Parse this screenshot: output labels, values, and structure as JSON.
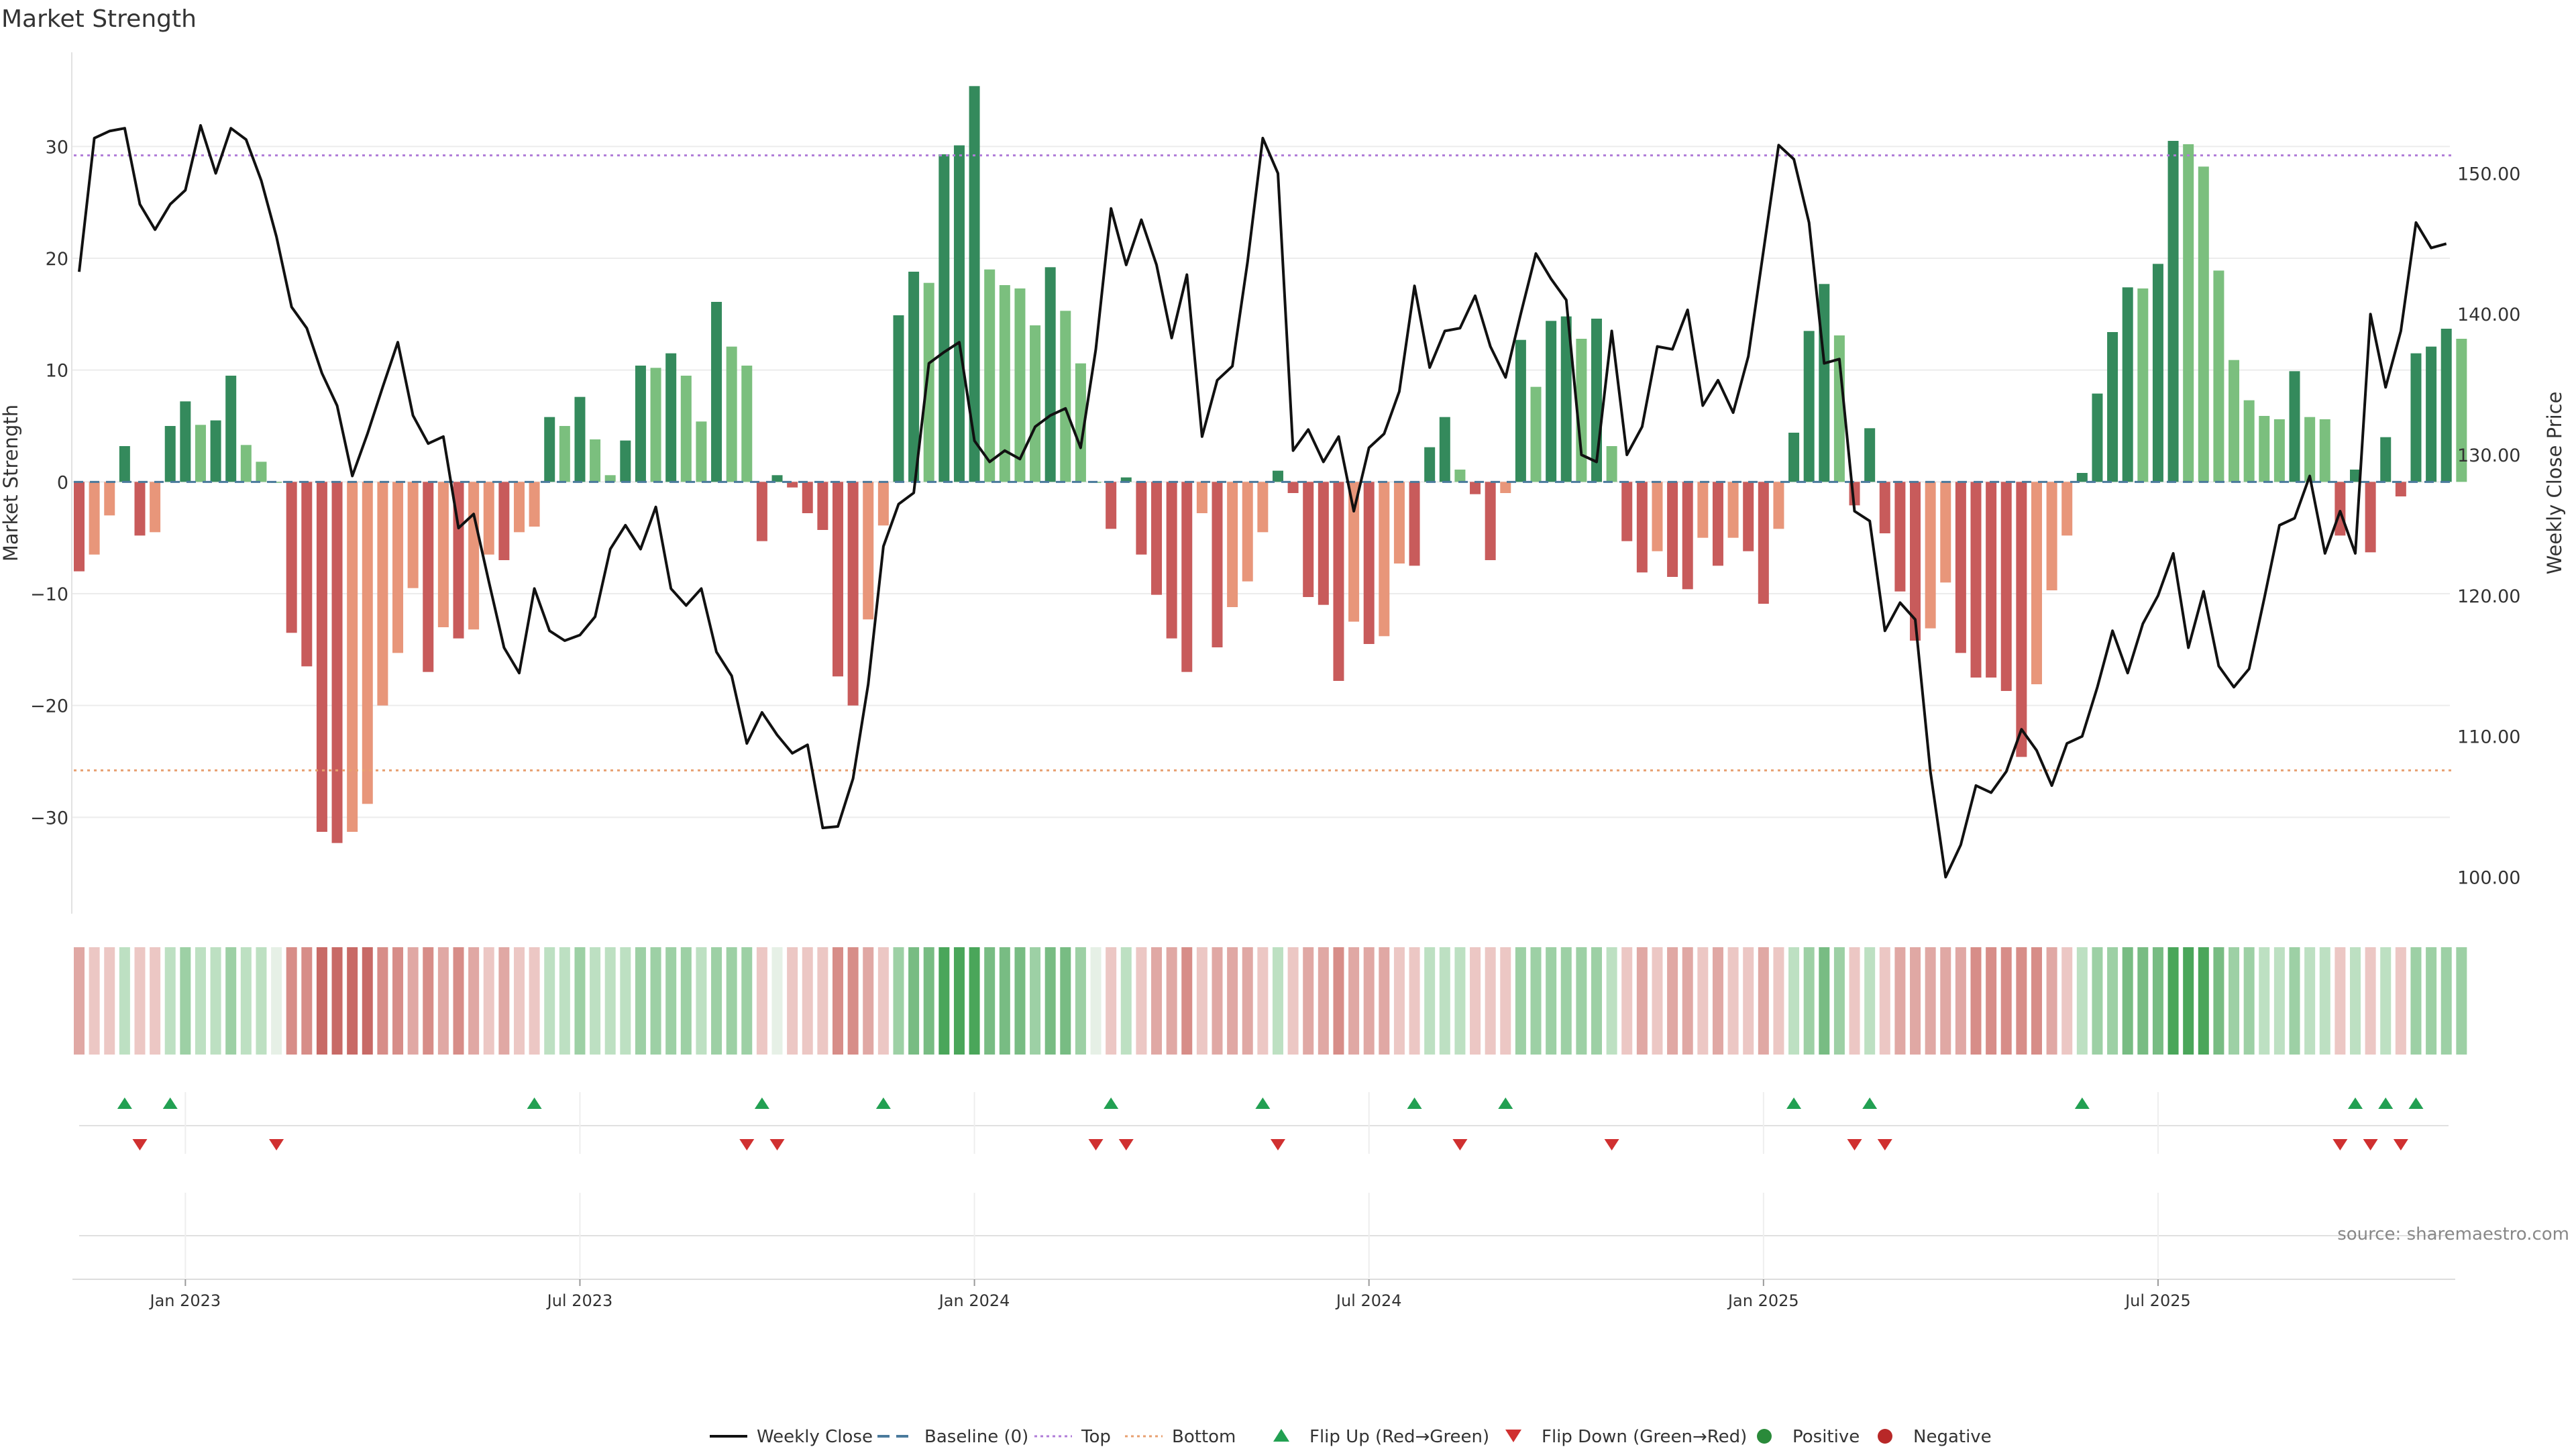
{
  "chart_data": {
    "type": "bar+line",
    "title": "Market Strength",
    "ylabel_left": "Market Strength",
    "ylabel_right": "Weekly Close Price",
    "ylim_left": [
      -38.5,
      38.3
    ],
    "ylim_right": [
      97.5,
      158.5
    ],
    "yticks_left": [
      -30,
      -20,
      -10,
      0,
      10,
      20,
      30
    ],
    "yticks_left_labels": [
      "−30",
      "−20",
      "−10",
      "0",
      "10",
      "20",
      "30"
    ],
    "yticks_right": [
      100,
      110,
      120,
      130,
      140,
      150
    ],
    "yticks_right_labels": [
      "100.00",
      "110.00",
      "120.00",
      "130.00",
      "140.00",
      "150.00"
    ],
    "x_ticks": [
      {
        "week": 7,
        "label": "Jan 2023"
      },
      {
        "week": 33,
        "label": "Jul 2023"
      },
      {
        "week": 59,
        "label": "Jan 2024"
      },
      {
        "week": 85,
        "label": "Jul 2024"
      },
      {
        "week": 111,
        "label": "Jan 2025"
      },
      {
        "week": 137,
        "label": "Jul 2025"
      }
    ],
    "top_line": 29.2,
    "bottom_line": -25.8,
    "strength": [
      -8,
      -6.5,
      -3,
      3.2,
      -4.8,
      -4.5,
      5,
      7.2,
      5.1,
      5.5,
      9.5,
      3.3,
      1.8,
      0,
      -13.5,
      -16.5,
      -31.3,
      -32.3,
      -31.3,
      -28.8,
      -20,
      -15.3,
      -9.5,
      -17,
      -13,
      -14,
      -13.2,
      -6.5,
      -7,
      -4.5,
      -4,
      5.8,
      5,
      7.6,
      3.8,
      0.6,
      3.7,
      10.4,
      10.2,
      11.5,
      9.5,
      5.4,
      16.1,
      12.1,
      10.4,
      -5.3,
      0.6,
      -0.5,
      -2.8,
      -4.3,
      -17.4,
      -20,
      -12.3,
      -3.9,
      14.9,
      18.8,
      17.8,
      29.3,
      30.1,
      35.4,
      19,
      17.6,
      17.3,
      14,
      19.2,
      15.3,
      10.6,
      0,
      -4.2,
      0.4,
      -6.5,
      -10.1,
      -14,
      -17,
      -2.8,
      -14.8,
      -11.2,
      -8.9,
      -4.5,
      1,
      -1,
      -10.3,
      -11,
      -17.8,
      -12.5,
      -14.5,
      -13.8,
      -7.3,
      -7.5,
      3.1,
      5.8,
      1.1,
      -1.1,
      -7,
      -1,
      12.7,
      8.5,
      14.4,
      14.8,
      12.8,
      14.6,
      3.2,
      -5.3,
      -8.1,
      -6.2,
      -8.5,
      -9.6,
      -5,
      -7.5,
      -5,
      -6.2,
      -10.9,
      -4.2,
      4.4,
      13.5,
      17.7,
      13.1,
      -2.1,
      4.8,
      -4.6,
      -9.8,
      -14.2,
      -13.1,
      -9,
      -15.3,
      -17.5,
      -17.5,
      -18.7,
      -24.6,
      -18.1,
      -9.7,
      -4.8,
      0.8,
      7.9,
      13.4,
      17.4,
      17.3,
      19.5,
      30.5,
      30.2,
      28.2,
      18.9,
      10.9,
      7.3,
      5.9,
      5.6,
      9.9,
      5.8,
      5.6,
      -4.8,
      1.1,
      -6.3,
      4,
      -1.3,
      11.5,
      12.1,
      13.7,
      12.8
    ],
    "weekly_close": [
      143,
      152.5,
      153,
      153.2,
      147.8,
      146,
      147.8,
      148.8,
      153.4,
      150,
      153.2,
      152.4,
      149.5,
      145.5,
      140.5,
      139,
      135.8,
      133.5,
      128.5,
      131.5,
      134.8,
      138,
      132.8,
      130.8,
      131.3,
      124.8,
      125.8,
      121,
      116.3,
      114.5,
      120.5,
      117.5,
      116.8,
      117.2,
      118.5,
      123.3,
      125,
      123.3,
      126.3,
      120.5,
      119.3,
      120.5,
      116,
      114.3,
      109.5,
      111.7,
      110.1,
      108.8,
      109.4,
      103.5,
      103.6,
      107,
      113.7,
      123.5,
      126.5,
      127.3,
      136.5,
      137.3,
      138,
      131,
      129.5,
      130.3,
      129.7,
      132,
      132.8,
      133.3,
      130.5,
      137.5,
      147.5,
      143.5,
      146.7,
      143.5,
      138.3,
      142.8,
      131.3,
      135.3,
      136.3,
      143.7,
      152.5,
      150,
      130.3,
      131.8,
      129.5,
      131.3,
      126,
      130.5,
      131.5,
      134.5,
      142,
      136.2,
      138.8,
      139,
      141.3,
      137.7,
      135.5,
      140,
      144.3,
      142.5,
      141,
      130,
      129.5,
      138.8,
      130,
      132,
      137.7,
      137.5,
      140.3,
      133.5,
      135.3,
      133,
      137,
      144.5,
      152,
      151,
      146.5,
      136.5,
      136.8,
      126,
      125.3,
      117.5,
      119.5,
      118.3,
      107.5,
      100,
      102.3,
      106.5,
      106,
      107.5,
      110.5,
      109,
      106.5,
      109.5,
      110,
      113.5,
      117.5,
      114.5,
      118,
      120,
      123,
      116.3,
      120.3,
      115,
      113.5,
      114.8,
      119.8,
      125,
      125.5,
      128.5,
      123,
      126,
      123,
      140,
      134.8,
      138.8,
      146.5,
      144.7,
      145
    ],
    "strength_strip": [
      -2,
      -1,
      -1,
      1,
      -1,
      -1,
      1,
      2,
      1,
      1,
      2,
      1,
      1,
      0,
      -3,
      -3,
      -4,
      -4,
      -4,
      -4,
      -3,
      -3,
      -2,
      -3,
      -2,
      -3,
      -2,
      -1,
      -2,
      -1,
      -1,
      1,
      1,
      2,
      1,
      1,
      1,
      2,
      2,
      2,
      2,
      1,
      2,
      2,
      2,
      -1,
      0,
      -1,
      -1,
      -1,
      -3,
      -3,
      -2,
      -1,
      2,
      3,
      3,
      4,
      4,
      4,
      3,
      3,
      3,
      2,
      3,
      3,
      2,
      0,
      -1,
      1,
      -1,
      -2,
      -2,
      -3,
      -1,
      -2,
      -2,
      -2,
      -1,
      1,
      -1,
      -2,
      -2,
      -3,
      -2,
      -2,
      -2,
      -1,
      -1,
      1,
      1,
      1,
      -1,
      -1,
      -1,
      2,
      2,
      2,
      2,
      2,
      2,
      1,
      -1,
      -2,
      -1,
      -2,
      -2,
      -1,
      -2,
      -1,
      -1,
      -2,
      -1,
      1,
      2,
      3,
      2,
      -1,
      1,
      -1,
      -2,
      -2,
      -2,
      -2,
      -2,
      -3,
      -3,
      -3,
      -3,
      -3,
      -2,
      -1,
      1,
      2,
      2,
      3,
      3,
      3,
      4,
      4,
      4,
      3,
      2,
      2,
      1,
      1,
      2,
      1,
      1,
      -1,
      1,
      -1,
      1,
      -1,
      2,
      2,
      2,
      2
    ],
    "flip_up_weeks": [
      3,
      6,
      30,
      45,
      53,
      68,
      78,
      88,
      94,
      113,
      118,
      132,
      150,
      152,
      154
    ],
    "flip_down_weeks": [
      4,
      13,
      44,
      46,
      67,
      69,
      79,
      91,
      101,
      117,
      119,
      149,
      151,
      153
    ],
    "legend": [
      "Weekly Close",
      "Baseline (0)",
      "Top",
      "Bottom",
      "Flip Up (Red→Green)",
      "Flip Down (Green→Red)",
      "Positive",
      "Negative"
    ],
    "legend_placement": "bottom-center",
    "annotation": "source: sharemaestro.com",
    "colors": {
      "pos_strong": "#348a5c",
      "pos_light": "#7bbf7e",
      "neg_strong": "#c85b5b",
      "neg_light": "#e8967a",
      "line": "#111111",
      "baseline": "#4a7a9c",
      "top": "#b07cd8",
      "bottom": "#e8a070",
      "flip_up": "#22a052",
      "flip_down": "#d03030",
      "positive_dot": "#2a8a3a",
      "negative_dot": "#b82828"
    }
  }
}
